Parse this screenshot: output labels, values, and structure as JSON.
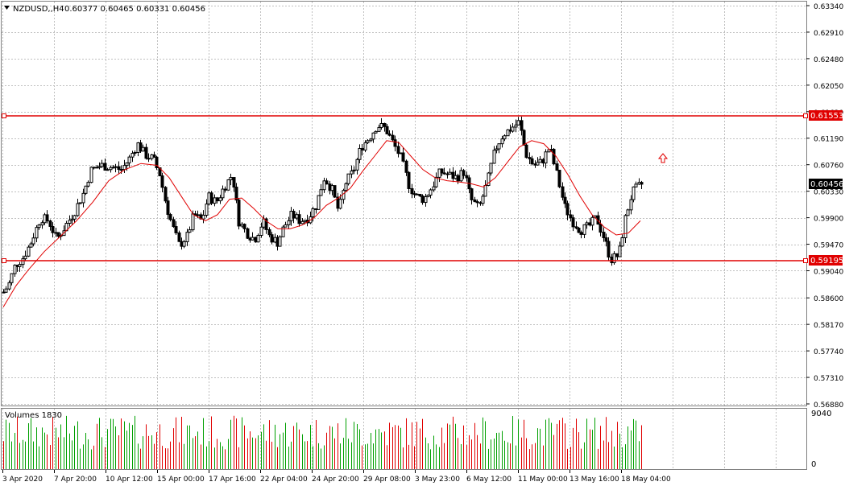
{
  "header": {
    "symbol_text": "NZDUSD,,H4",
    "ohlc_text": "0.60377 0.60465 0.60331 0.60456",
    "triangle_icon": "down-triangle-icon"
  },
  "price_axis": {
    "ticks": [
      "0.63340",
      "0.62910",
      "0.62480",
      "0.62050",
      "0.61620",
      "0.61190",
      "0.60760",
      "0.60330",
      "0.59900",
      "0.59470",
      "0.59040",
      "0.58600",
      "0.58170",
      "0.57740",
      "0.57310",
      "0.56880"
    ],
    "current_price": "0.60456",
    "resistance_label": "0.61553",
    "support_label": "0.59195"
  },
  "volume_panel": {
    "title": "Volumes 1830",
    "max_label": "9040",
    "min_label": "0"
  },
  "time_axis": {
    "labels": [
      "3 Apr 2020",
      "7 Apr 20:00",
      "10 Apr 12:00",
      "15 Apr 00:00",
      "17 Apr 16:00",
      "22 Apr 04:00",
      "24 Apr 20:00",
      "29 Apr 08:00",
      "3 May 23:00",
      "6 May 12:00",
      "11 May 00:00",
      "13 May 16:00",
      "18 May 04:00"
    ]
  },
  "markers": {
    "arrow_icon": "up-arrow-icon"
  },
  "colors": {
    "background": "#ffffff",
    "grid": "#c0c0c0",
    "candle": "#000000",
    "ma_line": "#e00000",
    "level_line": "#e00000",
    "volume_up": "#00a000",
    "volume_down": "#e00000",
    "current_price_bg": "#000000"
  },
  "chart_data": {
    "type": "candlestick",
    "ylim": [
      0.5688,
      0.6334
    ],
    "horizontal_lines": [
      0.61553,
      0.59195
    ],
    "moving_average": "red line",
    "close_path": [
      [
        0,
        0.5862
      ],
      [
        10,
        0.588
      ],
      [
        18,
        0.5912
      ],
      [
        28,
        0.5925
      ],
      [
        38,
        0.595
      ],
      [
        50,
        0.599
      ],
      [
        60,
        0.5985
      ],
      [
        70,
        0.5955
      ],
      [
        80,
        0.5975
      ],
      [
        92,
        0.6
      ],
      [
        103,
        0.603
      ],
      [
        113,
        0.6068
      ],
      [
        125,
        0.6075
      ],
      [
        138,
        0.6072
      ],
      [
        150,
        0.6068
      ],
      [
        160,
        0.6085
      ],
      [
        170,
        0.611
      ],
      [
        180,
        0.6092
      ],
      [
        190,
        0.6085
      ],
      [
        198,
        0.606
      ],
      [
        206,
        0.601
      ],
      [
        214,
        0.5975
      ],
      [
        222,
        0.5945
      ],
      [
        232,
        0.596
      ],
      [
        240,
        0.5995
      ],
      [
        250,
        0.5985
      ],
      [
        258,
        0.6025
      ],
      [
        268,
        0.6015
      ],
      [
        278,
        0.604
      ],
      [
        288,
        0.606
      ],
      [
        296,
        0.5985
      ],
      [
        306,
        0.5965
      ],
      [
        316,
        0.5955
      ],
      [
        326,
        0.5985
      ],
      [
        334,
        0.596
      ],
      [
        344,
        0.595
      ],
      [
        352,
        0.5975
      ],
      [
        362,
        0.5995
      ],
      [
        372,
        0.5985
      ],
      [
        382,
        0.599
      ],
      [
        392,
        0.601
      ],
      [
        402,
        0.6055
      ],
      [
        412,
        0.6035
      ],
      [
        420,
        0.6
      ],
      [
        428,
        0.6045
      ],
      [
        438,
        0.6065
      ],
      [
        448,
        0.6105
      ],
      [
        458,
        0.612
      ],
      [
        468,
        0.614
      ],
      [
        478,
        0.6135
      ],
      [
        488,
        0.611
      ],
      [
        498,
        0.6085
      ],
      [
        508,
        0.604
      ],
      [
        516,
        0.6025
      ],
      [
        526,
        0.602
      ],
      [
        536,
        0.604
      ],
      [
        546,
        0.6065
      ],
      [
        556,
        0.606
      ],
      [
        566,
        0.6055
      ],
      [
        576,
        0.6065
      ],
      [
        584,
        0.602
      ],
      [
        594,
        0.6005
      ],
      [
        604,
        0.6045
      ],
      [
        614,
        0.61
      ],
      [
        624,
        0.6125
      ],
      [
        634,
        0.6135
      ],
      [
        644,
        0.6145
      ],
      [
        652,
        0.6095
      ],
      [
        662,
        0.6075
      ],
      [
        672,
        0.608
      ],
      [
        682,
        0.6105
      ],
      [
        692,
        0.6055
      ],
      [
        700,
        0.601
      ],
      [
        710,
        0.5985
      ],
      [
        720,
        0.597
      ],
      [
        730,
        0.5975
      ],
      [
        740,
        0.599
      ],
      [
        750,
        0.5955
      ],
      [
        758,
        0.5922
      ],
      [
        768,
        0.593
      ],
      [
        776,
        0.599
      ],
      [
        784,
        0.603
      ],
      [
        792,
        0.604
      ],
      [
        798,
        0.6046
      ]
    ],
    "ma_path": [
      [
        4,
        0.5845
      ],
      [
        20,
        0.588
      ],
      [
        35,
        0.5905
      ],
      [
        55,
        0.5935
      ],
      [
        75,
        0.596
      ],
      [
        95,
        0.5985
      ],
      [
        115,
        0.6015
      ],
      [
        135,
        0.605
      ],
      [
        155,
        0.6068
      ],
      [
        175,
        0.6078
      ],
      [
        195,
        0.6075
      ],
      [
        210,
        0.6055
      ],
      [
        225,
        0.6025
      ],
      [
        240,
        0.5995
      ],
      [
        255,
        0.5985
      ],
      [
        270,
        0.5995
      ],
      [
        285,
        0.602
      ],
      [
        300,
        0.6022
      ],
      [
        315,
        0.6005
      ],
      [
        330,
        0.5985
      ],
      [
        345,
        0.5972
      ],
      [
        360,
        0.5972
      ],
      [
        375,
        0.5978
      ],
      [
        390,
        0.599
      ],
      [
        405,
        0.601
      ],
      [
        420,
        0.6022
      ],
      [
        435,
        0.6038
      ],
      [
        450,
        0.6065
      ],
      [
        465,
        0.609
      ],
      [
        480,
        0.6115
      ],
      [
        495,
        0.6112
      ],
      [
        510,
        0.609
      ],
      [
        525,
        0.6068
      ],
      [
        540,
        0.6055
      ],
      [
        555,
        0.605
      ],
      [
        570,
        0.6048
      ],
      [
        585,
        0.6045
      ],
      [
        600,
        0.604
      ],
      [
        615,
        0.6055
      ],
      [
        630,
        0.608
      ],
      [
        645,
        0.6105
      ],
      [
        660,
        0.6115
      ],
      [
        675,
        0.611
      ],
      [
        690,
        0.609
      ],
      [
        705,
        0.606
      ],
      [
        720,
        0.6025
      ],
      [
        735,
        0.5995
      ],
      [
        750,
        0.5975
      ],
      [
        765,
        0.5962
      ],
      [
        780,
        0.5965
      ],
      [
        795,
        0.5985
      ]
    ]
  }
}
